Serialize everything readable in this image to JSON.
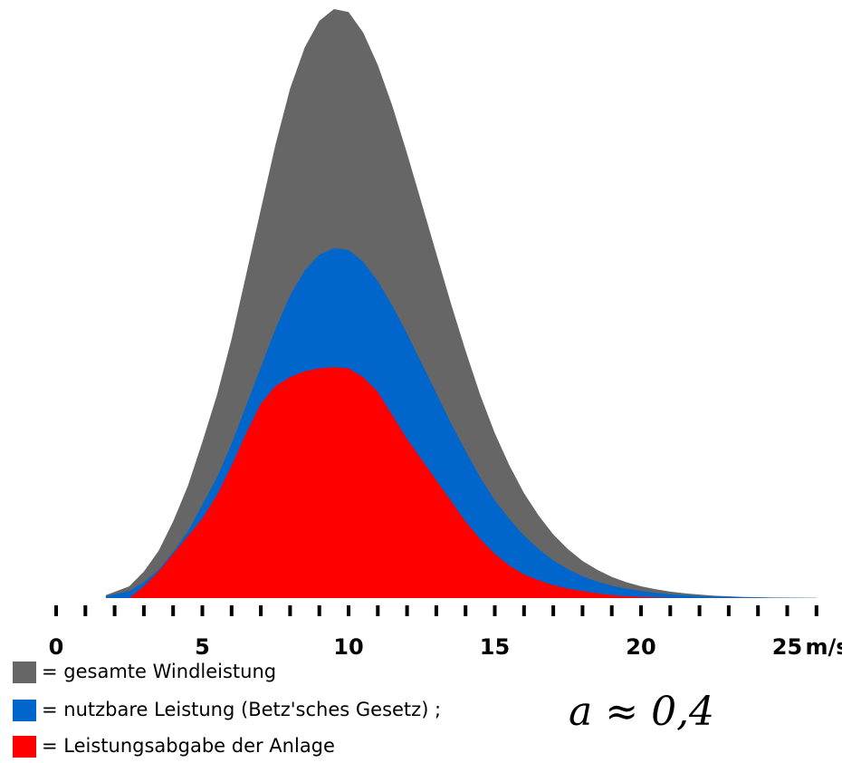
{
  "chart_data": {
    "type": "area",
    "x_unit_label": "m/s",
    "x_tick_labels": [
      {
        "value": 0,
        "label": "0"
      },
      {
        "value": 5,
        "label": "5"
      },
      {
        "value": 10,
        "label": "10"
      },
      {
        "value": 15,
        "label": "15"
      },
      {
        "value": 20,
        "label": "20"
      },
      {
        "value": 25,
        "label": "25"
      }
    ],
    "x_minor_ticks": [
      0,
      1,
      2,
      3,
      4,
      5,
      6,
      7,
      8,
      9,
      10,
      11,
      12,
      13,
      14,
      15,
      16,
      17,
      18,
      19,
      20,
      21,
      22,
      23,
      24,
      25,
      26
    ],
    "xlim": [
      0,
      26.5
    ],
    "ylim": [
      0,
      1.0
    ],
    "grid": false,
    "legend_position": "bottom-left",
    "x": [
      1.7,
      2.5,
      3,
      3.5,
      4,
      4.5,
      5,
      5.5,
      6,
      6.5,
      7,
      7.5,
      8,
      8.5,
      9,
      9.5,
      10,
      10.5,
      11,
      11.5,
      12,
      12.5,
      13,
      13.5,
      14,
      14.5,
      15,
      15.5,
      16,
      16.5,
      17,
      17.5,
      18,
      18.5,
      19,
      19.5,
      20,
      20.5,
      21,
      21.5,
      22,
      22.5,
      23,
      23.5,
      24,
      24.5,
      25,
      25.5,
      26
    ],
    "series": [
      {
        "name": "= gesamte Windleistung",
        "color": "#666666",
        "values": [
          0.005,
          0.02,
          0.045,
          0.08,
          0.13,
          0.19,
          0.265,
          0.345,
          0.44,
          0.55,
          0.66,
          0.77,
          0.865,
          0.935,
          0.98,
          1.0,
          0.995,
          0.96,
          0.905,
          0.835,
          0.755,
          0.67,
          0.585,
          0.5,
          0.42,
          0.345,
          0.28,
          0.225,
          0.178,
          0.14,
          0.108,
          0.083,
          0.063,
          0.048,
          0.036,
          0.027,
          0.02,
          0.015,
          0.011,
          0.008,
          0.006,
          0.004,
          0.003,
          0.002,
          0.0015,
          0.001,
          0.0007,
          0.0005,
          0.0003
        ]
      },
      {
        "name": "= nutzbare Leistung (Betz'sches Gesetz) ;",
        "color": "#0066CC",
        "values": [
          0.003,
          0.012,
          0.027,
          0.048,
          0.078,
          0.113,
          0.158,
          0.205,
          0.262,
          0.327,
          0.392,
          0.457,
          0.514,
          0.556,
          0.583,
          0.594,
          0.591,
          0.571,
          0.538,
          0.496,
          0.449,
          0.398,
          0.348,
          0.297,
          0.25,
          0.205,
          0.166,
          0.134,
          0.106,
          0.083,
          0.064,
          0.049,
          0.037,
          0.028,
          0.021,
          0.016,
          0.012,
          0.009,
          0.0065,
          0.0048,
          0.0035,
          0.0025,
          0.0018,
          0.0013,
          0.0009,
          0.0006,
          0.0004,
          0.0003,
          0.0002
        ]
      },
      {
        "name": "= Leistungsabgabe der Anlage",
        "color": "#FF0000",
        "values": [
          0,
          0,
          0.02,
          0.045,
          0.075,
          0.105,
          0.135,
          0.175,
          0.225,
          0.28,
          0.33,
          0.36,
          0.375,
          0.385,
          0.39,
          0.392,
          0.39,
          0.375,
          0.35,
          0.31,
          0.27,
          0.235,
          0.2,
          0.165,
          0.13,
          0.1,
          0.075,
          0.055,
          0.04,
          0.03,
          0.022,
          0.016,
          0.012,
          0.008,
          0.005,
          0.003,
          0.002,
          0.001,
          0.0005,
          0,
          0,
          0,
          0,
          0,
          0,
          0,
          0,
          0,
          0
        ]
      }
    ],
    "annotation": "a ≈ 0,4"
  }
}
